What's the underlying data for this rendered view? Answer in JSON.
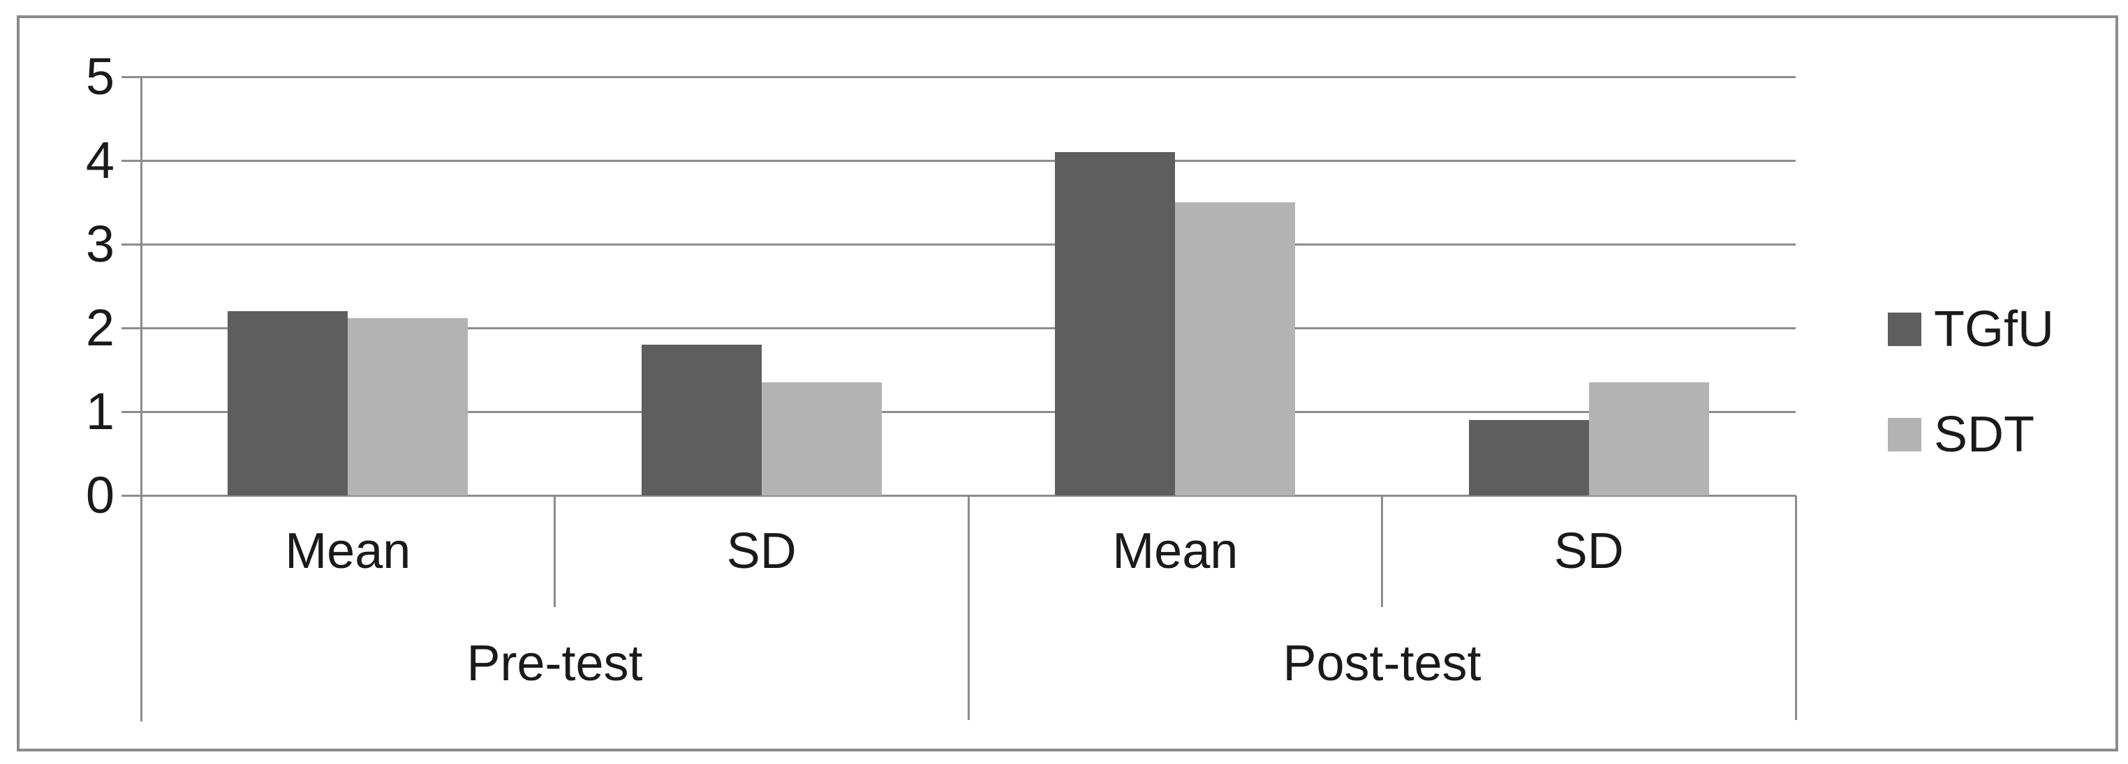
{
  "chart_data": {
    "type": "bar",
    "title": "",
    "group_labels": [
      "Pre-test",
      "Post-test"
    ],
    "sub_category_labels": [
      "Mean",
      "SD",
      "Mean",
      "SD"
    ],
    "categories": [
      "Pre-test Mean",
      "Pre-test SD",
      "Post-test Mean",
      "Post-test SD"
    ],
    "series": [
      {
        "name": "TGfU",
        "color": "#5e5e5e",
        "values": [
          2.2,
          1.8,
          4.1,
          0.9
        ]
      },
      {
        "name": "SDT",
        "color": "#b3b3b3",
        "values": [
          2.12,
          1.35,
          3.5,
          1.35
        ]
      }
    ],
    "y_ticks": [
      0,
      1,
      2,
      3,
      4,
      5
    ],
    "y_tick_labels": [
      "0",
      "1",
      "2",
      "3",
      "4",
      "5"
    ],
    "ylim": [
      0,
      5
    ],
    "grid": true,
    "legend_position": "right",
    "colors": {
      "gridline": "#8c8c8c",
      "axis_line": "#8c8c8c",
      "outer_border": "#8a8a8f",
      "text": "#1a1a1a",
      "background": "#ffffff"
    }
  }
}
